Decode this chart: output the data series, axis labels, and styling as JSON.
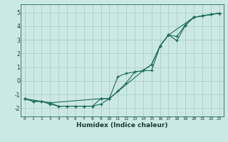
{
  "xlabel": "Humidex (Indice chaleur)",
  "background_color": "#cce8e4",
  "grid_color": "#aacfca",
  "line_color": "#1a6b5a",
  "xlim": [
    -0.5,
    23.5
  ],
  "ylim": [
    -2.6,
    5.6
  ],
  "xticks": [
    0,
    1,
    2,
    3,
    4,
    5,
    6,
    7,
    8,
    9,
    10,
    11,
    12,
    13,
    14,
    15,
    16,
    17,
    18,
    19,
    20,
    21,
    22,
    23
  ],
  "yticks": [
    -2,
    -1,
    0,
    1,
    2,
    3,
    4,
    5
  ],
  "line1_x": [
    0,
    1,
    2,
    3,
    4,
    5,
    6,
    7,
    8,
    9,
    10,
    11,
    12,
    13,
    14,
    15,
    16,
    17,
    18,
    19,
    20,
    21,
    22,
    23
  ],
  "line1_y": [
    -1.3,
    -1.5,
    -1.5,
    -1.7,
    -1.85,
    -1.85,
    -1.85,
    -1.85,
    -1.85,
    -1.7,
    -1.3,
    -0.75,
    -0.15,
    0.65,
    0.75,
    0.75,
    2.55,
    3.35,
    3.25,
    4.1,
    4.65,
    4.75,
    4.85,
    4.95
  ],
  "line2_x": [
    0,
    1,
    2,
    3,
    4,
    5,
    6,
    7,
    8,
    9,
    10,
    11,
    12,
    13,
    14,
    15,
    16,
    17,
    18,
    19,
    20,
    21,
    22,
    23
  ],
  "line2_y": [
    -1.3,
    -1.5,
    -1.5,
    -1.6,
    -1.85,
    -1.85,
    -1.85,
    -1.85,
    -1.85,
    -1.3,
    -1.3,
    0.3,
    0.55,
    0.65,
    0.75,
    1.2,
    2.55,
    3.35,
    2.95,
    4.05,
    4.65,
    4.75,
    4.85,
    4.95
  ],
  "line3_x": [
    0,
    3,
    9,
    10,
    14,
    15,
    16,
    17,
    20,
    21,
    22,
    23
  ],
  "line3_y": [
    -1.3,
    -1.6,
    -1.3,
    -1.3,
    0.75,
    1.2,
    2.55,
    3.35,
    4.65,
    4.75,
    4.85,
    4.95
  ]
}
